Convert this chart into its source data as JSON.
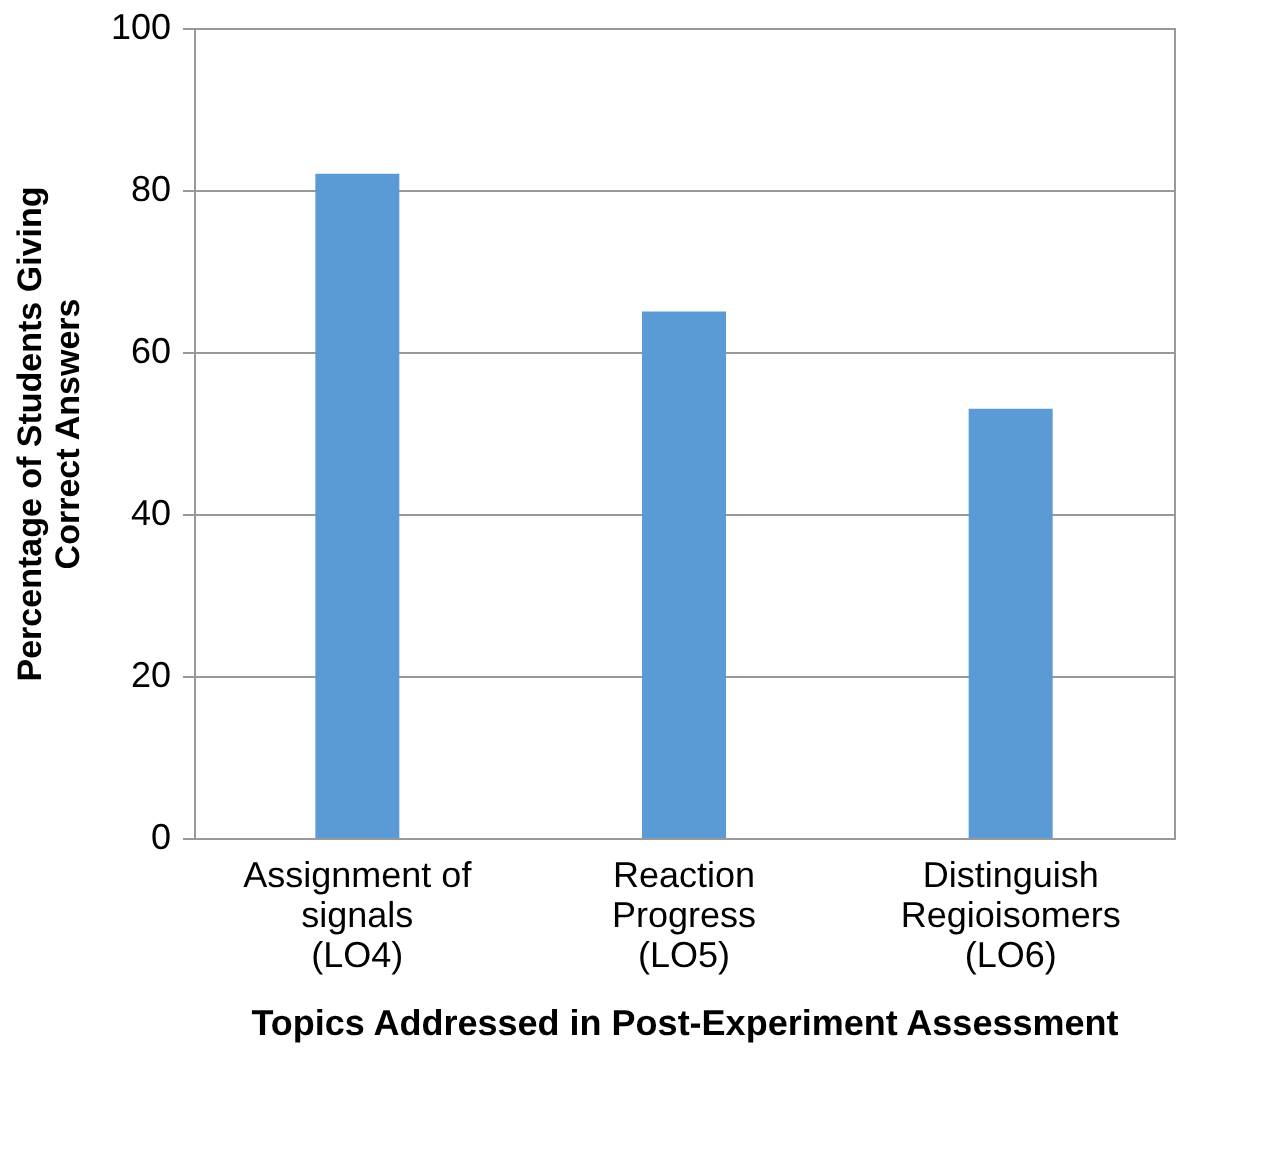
{
  "chart_data": {
    "type": "bar",
    "categories": [
      "Assignment of signals (LO4)",
      "Reaction Progress (LO5)",
      "Distinguish Regioisomers (LO6)"
    ],
    "values": [
      82,
      65,
      53
    ],
    "color": "#5b9bd5",
    "xlabel": "Topics Addressed in Post-Experiment Assessment",
    "ylabel": "Percentage of Students Giving Correct Answers",
    "ylim": [
      0,
      100
    ],
    "yticks": [
      0,
      20,
      40,
      60,
      80,
      100
    ],
    "grid": "y"
  }
}
